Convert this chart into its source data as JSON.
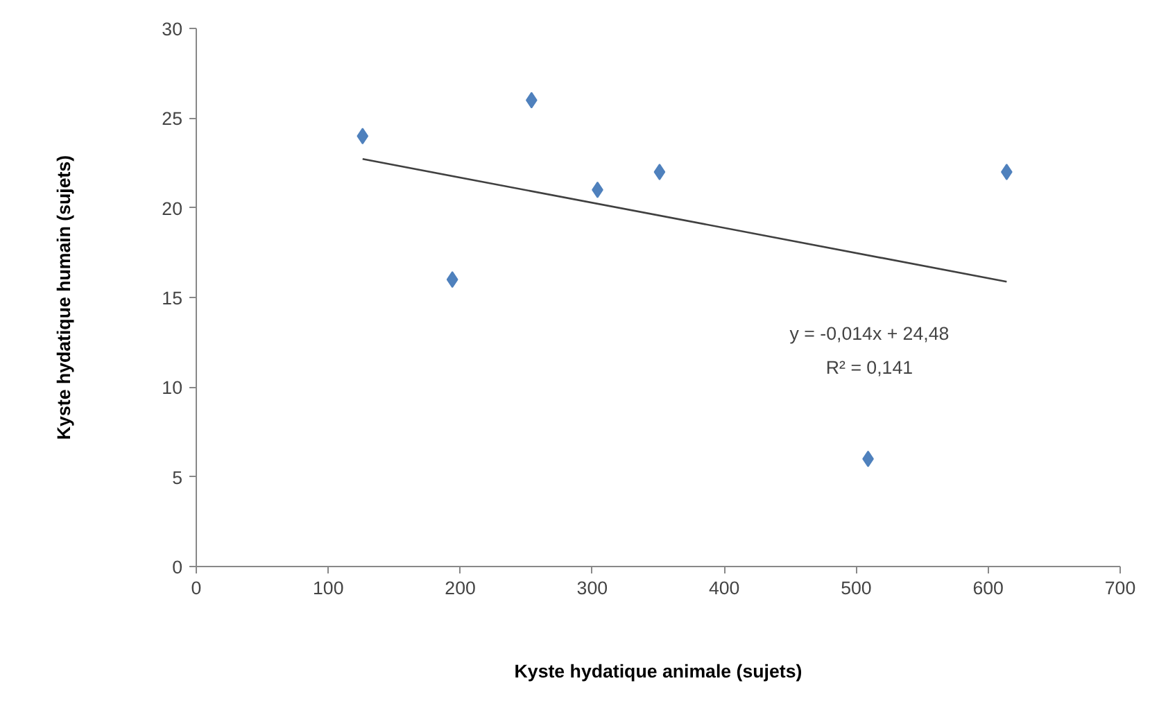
{
  "chart_data": {
    "type": "scatter",
    "xlabel": "Kyste hydatique animale (sujets)",
    "ylabel": "Kyste hydatique humain (sujets)",
    "annotations": [
      "y = -0,014x + 24,48",
      "R² = 0,141"
    ],
    "xlim": [
      0,
      700
    ],
    "xticks": [
      0,
      100,
      200,
      300,
      400,
      500,
      600,
      700
    ],
    "ylim": [
      0,
      30
    ],
    "yticks": [
      0,
      5,
      10,
      15,
      20,
      25,
      30
    ],
    "grid": false,
    "marker": "diamond",
    "series": [
      {
        "color": "#4f81bd",
        "x": [
          126,
          194,
          254,
          304,
          351,
          509,
          614
        ],
        "values": [
          24,
          16,
          26,
          21,
          22,
          6,
          22
        ]
      },
      {
        "type": "line",
        "color": "#404040",
        "x": [
          126,
          614
        ],
        "values": [
          22.72,
          15.88
        ],
        "marker": "none",
        "line_style": "solid"
      }
    ]
  }
}
